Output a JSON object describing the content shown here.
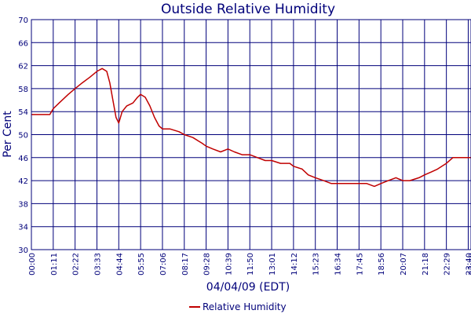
{
  "chart_data": {
    "type": "line",
    "title": "Outside Relative Humidity",
    "xlabel": "04/04/09 (EDT)",
    "ylabel": "Per Cent",
    "ylim": [
      30,
      70
    ],
    "y_ticks": [
      30,
      34,
      38,
      42,
      46,
      50,
      54,
      58,
      62,
      66,
      70
    ],
    "x_ticks": [
      "00:00",
      "01:11",
      "02:22",
      "03:33",
      "04:44",
      "05:55",
      "07:06",
      "08:17",
      "09:28",
      "10:39",
      "11:50",
      "13:01",
      "14:12",
      "15:23",
      "16:34",
      "17:45",
      "18:56",
      "20:07",
      "21:18",
      "22:29",
      "23:40",
      "23:49"
    ],
    "grid": true,
    "legend_position": "bottom-center",
    "colors": {
      "series": "#c00000",
      "grid": "#00007a",
      "text": "#00007a"
    },
    "series": [
      {
        "name": "Relative Humidity",
        "x": [
          "00:00",
          "00:30",
          "01:00",
          "01:11",
          "01:30",
          "02:00",
          "02:22",
          "02:45",
          "03:10",
          "03:33",
          "03:50",
          "04:05",
          "04:15",
          "04:25",
          "04:35",
          "04:44",
          "04:55",
          "05:10",
          "05:30",
          "05:45",
          "05:55",
          "06:10",
          "06:25",
          "06:40",
          "06:55",
          "07:06",
          "07:30",
          "08:00",
          "08:17",
          "08:45",
          "09:15",
          "09:28",
          "09:50",
          "10:15",
          "10:39",
          "11:00",
          "11:25",
          "11:50",
          "12:15",
          "12:40",
          "13:01",
          "13:30",
          "14:00",
          "14:12",
          "14:40",
          "15:00",
          "15:23",
          "15:50",
          "16:15",
          "16:34",
          "17:00",
          "17:20",
          "17:45",
          "18:10",
          "18:35",
          "18:56",
          "19:20",
          "19:45",
          "20:07",
          "20:30",
          "21:00",
          "21:18",
          "21:40",
          "22:00",
          "22:29",
          "22:50",
          "23:10",
          "23:30",
          "23:49"
        ],
        "y": [
          53.5,
          53.5,
          53.5,
          54.5,
          55.5,
          57,
          58,
          59,
          60,
          61,
          61.5,
          61,
          59,
          56,
          53,
          52,
          54,
          55,
          55.5,
          56.5,
          57,
          56.5,
          55,
          53,
          51.5,
          51,
          51,
          50.5,
          50,
          49.5,
          48.5,
          48,
          47.5,
          47,
          47.5,
          47,
          46.5,
          46.5,
          46,
          45.5,
          45.5,
          45,
          45,
          44.5,
          44,
          43,
          42.5,
          42,
          41.5,
          41.5,
          41.5,
          41.5,
          41.5,
          41.5,
          41,
          41.5,
          42,
          42.5,
          42,
          42,
          42.5,
          43,
          43.5,
          44,
          45,
          46,
          46,
          46,
          46
        ]
      }
    ]
  }
}
